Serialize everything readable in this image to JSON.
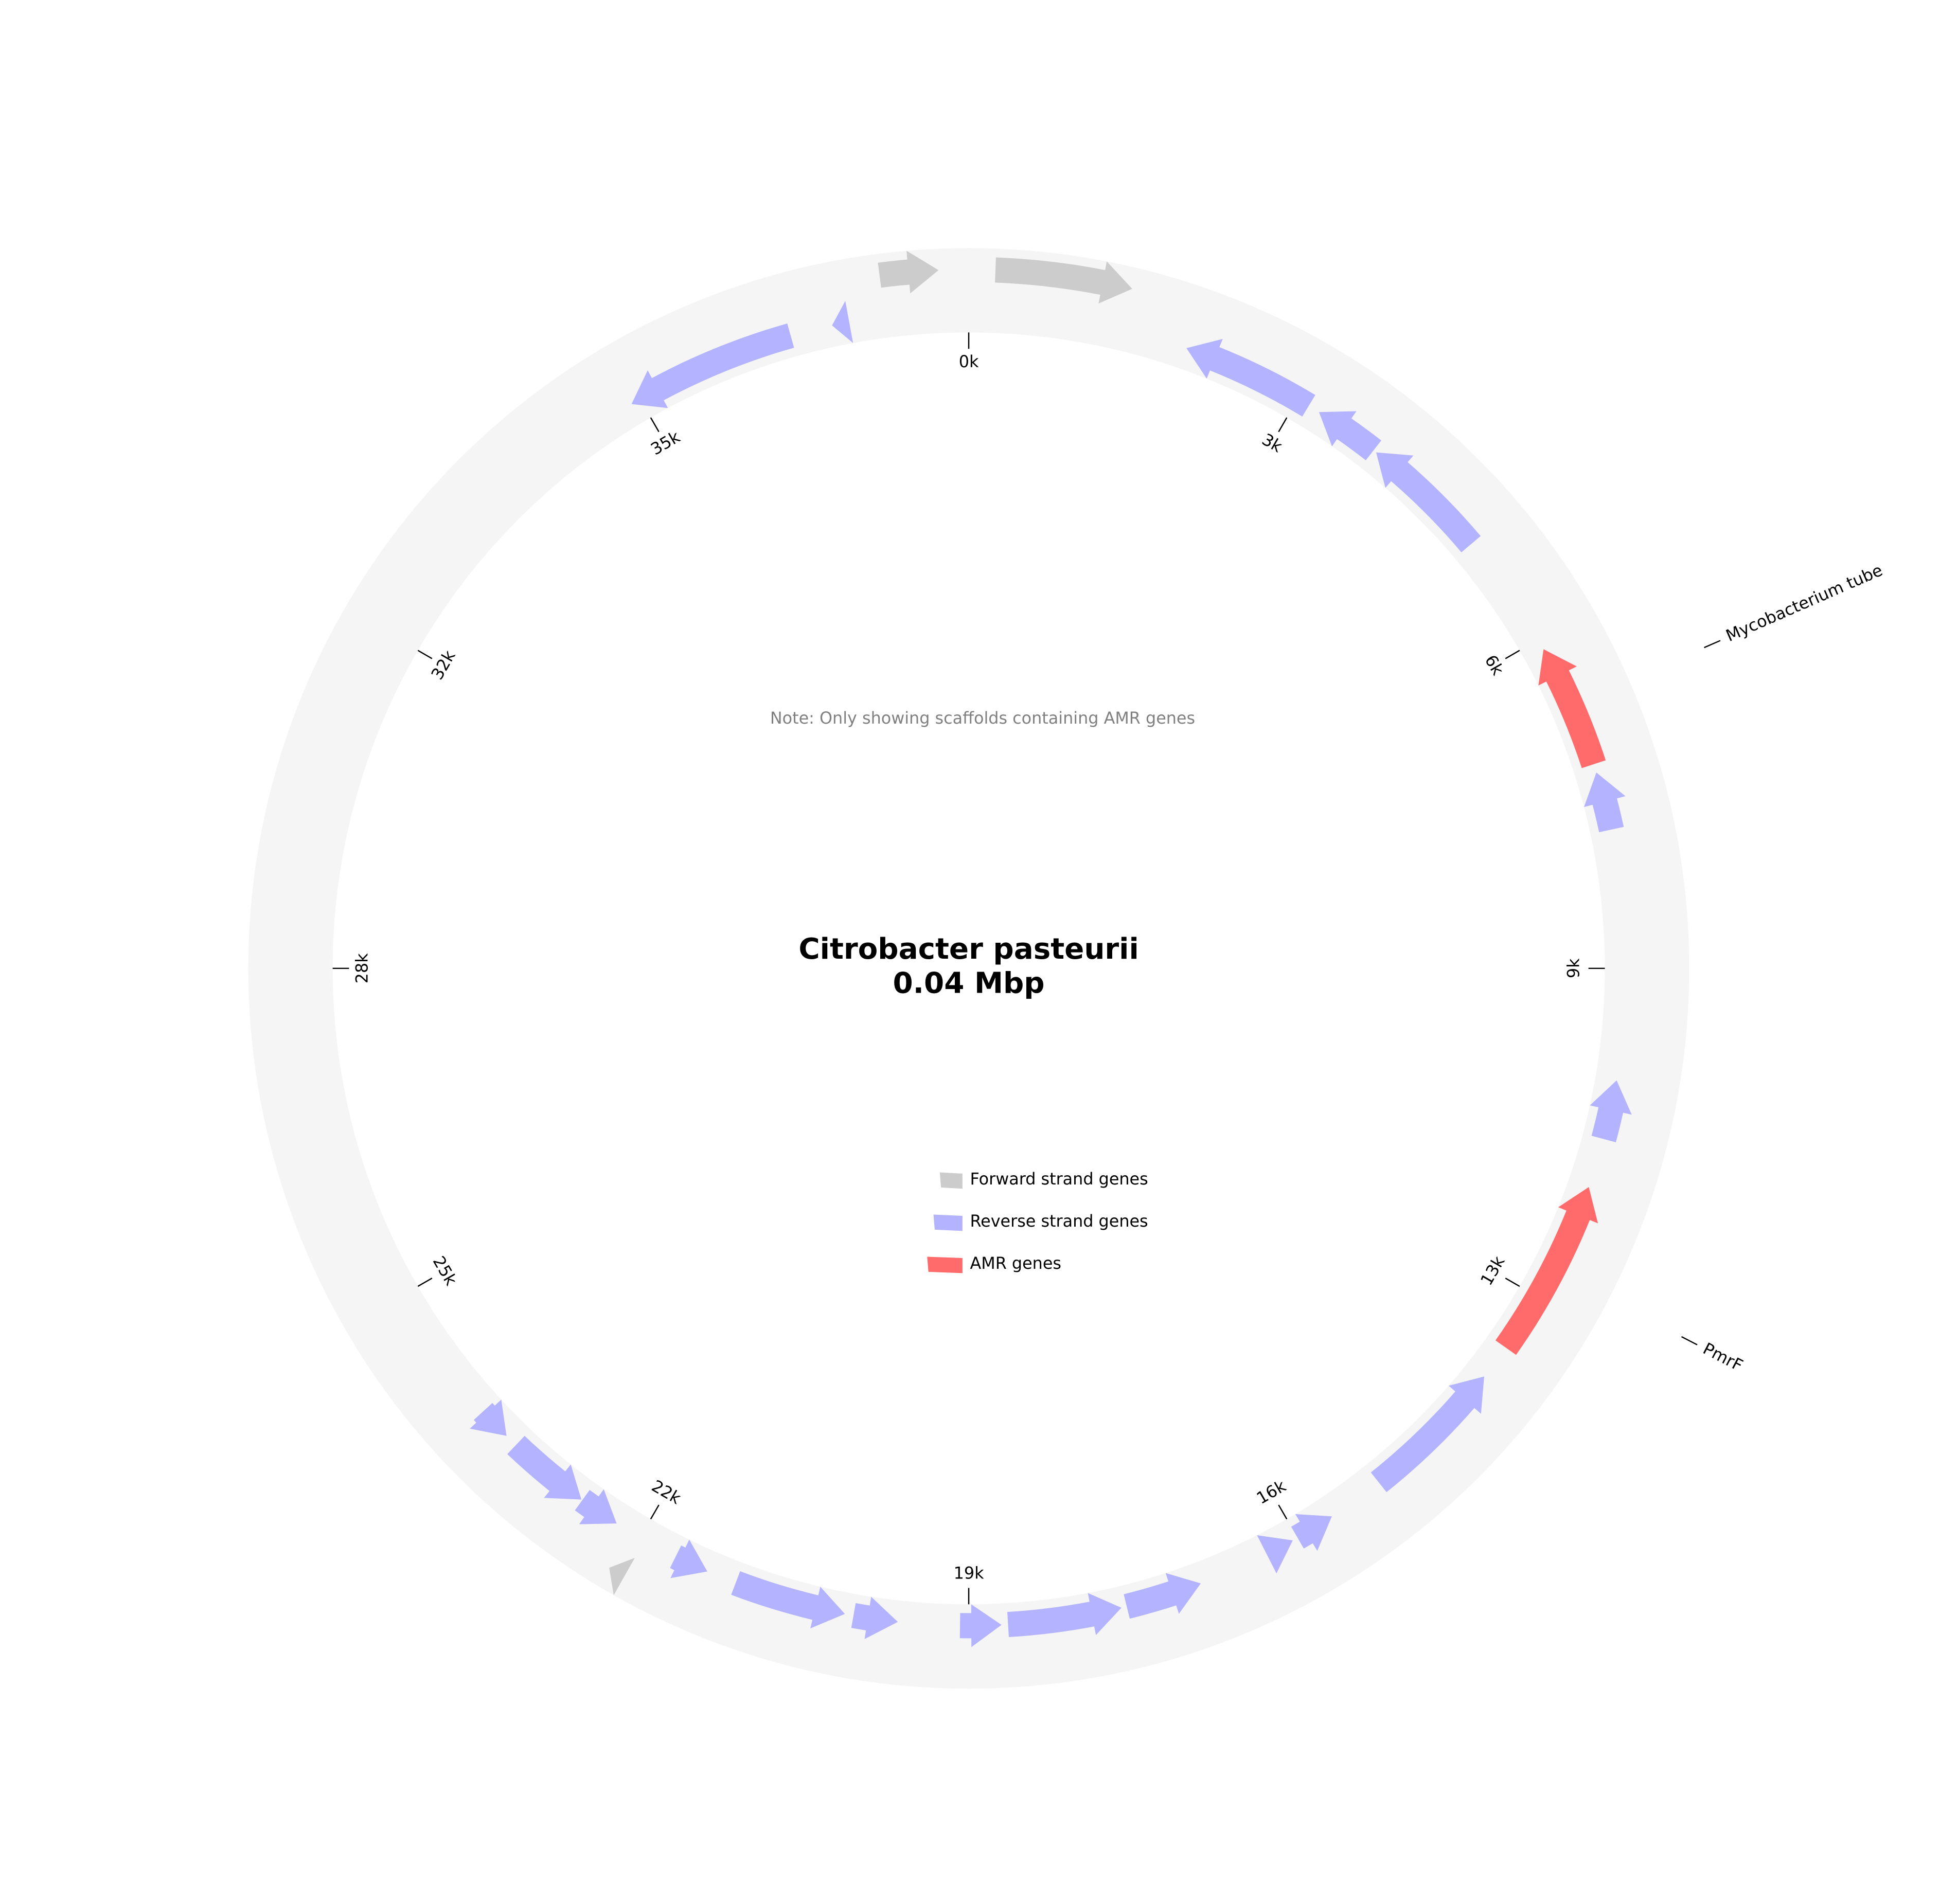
{
  "chart_data": {
    "type": "circular-genome",
    "title": "Citrobacter pasteurii",
    "subtitle": "0.04 Mbp",
    "note": "Note: Only showing scaffolds containing AMR genes",
    "xlim": [
      0,
      37800
    ],
    "xticks": [
      {
        "value": 0,
        "label": "0k"
      },
      {
        "value": 3150,
        "label": "3k"
      },
      {
        "value": 6300,
        "label": "6k"
      },
      {
        "value": 9450,
        "label": "9k"
      },
      {
        "value": 12600,
        "label": "13k"
      },
      {
        "value": 15750,
        "label": "16k"
      },
      {
        "value": 18900,
        "label": "19k"
      },
      {
        "value": 22050,
        "label": "22k"
      },
      {
        "value": 25200,
        "label": "25k"
      },
      {
        "value": 28350,
        "label": "28k"
      },
      {
        "value": 31500,
        "label": "32k"
      },
      {
        "value": 34650,
        "label": "35k"
      }
    ],
    "series": [
      {
        "name": "Forward strand genes",
        "color": "#cccccc",
        "strand": 1,
        "start": [
          37030,
          230,
          22000
        ],
        "end": [
          37540,
          1420,
          22150
        ]
      },
      {
        "name": "Reverse strand genes",
        "color": "#b3b3ff",
        "strand": -1,
        "start": [
          2030,
          3380,
          4020,
          7630,
          10480,
          13480,
          15380,
          15800,
          16730,
          17490,
          18600,
          19550,
          20040,
          21360,
          22300,
          22690,
          23590,
          34560,
          36540
        ],
        "end": [
          3270,
          3990,
          5230,
          8170,
          11030,
          14850,
          15750,
          16070,
          17440,
          18540,
          18980,
          19960,
          21080,
          21680,
          22680,
          23470,
          23900,
          36150,
          36700
        ]
      },
      {
        "name": "AMR genes",
        "color": "#ff6b6b",
        "strand": -1,
        "start": [
          6400,
          11490
        ],
        "end": [
          7550,
          13150
        ],
        "labels": [
          "Mycobacterium tube",
          "PmrF"
        ]
      }
    ]
  }
}
